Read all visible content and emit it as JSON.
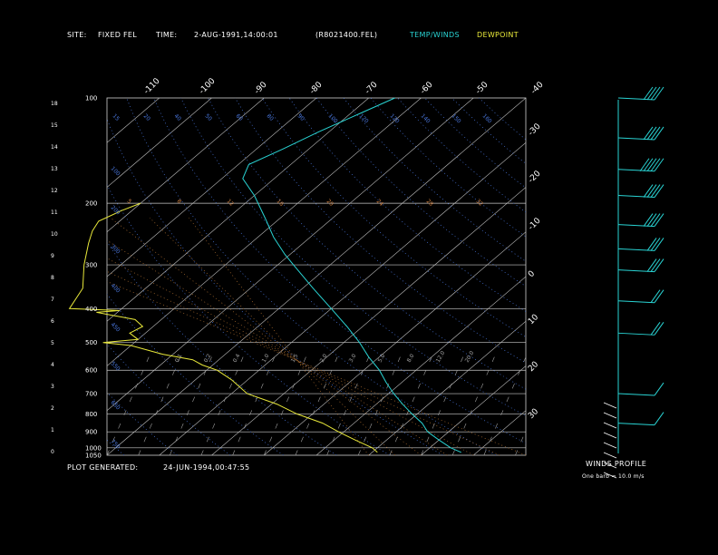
{
  "header": {
    "site_label": "SITE:",
    "site_value": "FIXED FEL",
    "time_label": "TIME:",
    "time_value": "2-AUG-1991,14:00:01",
    "file_name": "(R8021400.FEL)",
    "legend_temp": "TEMP/WINDS",
    "legend_dew": "DEWPOINT"
  },
  "footer": {
    "plot_generated_label": "PLOT GENERATED:",
    "plot_generated_value": "24-JUN-1994,00:47:55",
    "winds_profile_title": "WINDS PROFILE",
    "barb_note": "One barb = 10.0 m/s"
  },
  "colors": {
    "background": "#000000",
    "text": "#ffffff",
    "temp_line": "#29d3d3",
    "dewpoint_line": "#e8e83a",
    "isotherm": "#c0c0c0",
    "mixing_ratio": "#4a78e0",
    "dry_adiabat": "#b07030",
    "pressure_line": "#c8c8c8"
  },
  "chart_data": {
    "type": "line",
    "subtype": "skew-t sounding",
    "pressure_levels": [
      100,
      200,
      300,
      400,
      500,
      600,
      700,
      800,
      900,
      1000,
      1050
    ],
    "height_km_ticks": [
      18,
      15,
      14,
      13,
      12,
      11,
      10,
      9,
      8,
      7,
      6,
      5,
      4,
      3,
      2,
      1,
      0
    ],
    "top_temperature_ticks": [
      -110,
      -100,
      -90,
      -80,
      -70,
      -60,
      -50,
      -40
    ],
    "right_temperature_ticks": [
      -30,
      -20,
      -10,
      0,
      10,
      20,
      30
    ],
    "mixing_ratio_labels_top": [
      "15",
      "20",
      "40",
      "50",
      "60",
      "80",
      "90",
      "100",
      "120",
      "120",
      "140",
      "150",
      "160"
    ],
    "mixing_ratio_labels_left": [
      "100",
      "200",
      "300",
      "400",
      "450",
      "550",
      "650",
      "750"
    ],
    "adiabat_labels": [
      "5",
      "8",
      "12",
      "16",
      "20",
      "24",
      "28",
      "32"
    ],
    "mixing_ratio_labels_mid": [
      "0.1",
      "0.2",
      "0.4",
      "1.0",
      "1.5",
      "2.0",
      "3.0",
      "5.0",
      "8.0",
      "12.0",
      "20.0"
    ],
    "grid": true,
    "series": [
      {
        "name": "TEMP/WINDS",
        "points": [
          [
            100,
            -65
          ],
          [
            110,
            -68
          ],
          [
            125,
            -72
          ],
          [
            140,
            -75
          ],
          [
            155,
            -78
          ],
          [
            170,
            -76
          ],
          [
            190,
            -70
          ],
          [
            220,
            -63
          ],
          [
            250,
            -57
          ],
          [
            280,
            -51
          ],
          [
            300,
            -47
          ],
          [
            350,
            -38
          ],
          [
            400,
            -30
          ],
          [
            450,
            -23
          ],
          [
            500,
            -17
          ],
          [
            550,
            -12
          ],
          [
            600,
            -7
          ],
          [
            650,
            -3
          ],
          [
            700,
            1
          ],
          [
            750,
            5
          ],
          [
            800,
            9
          ],
          [
            850,
            13
          ],
          [
            900,
            16
          ],
          [
            950,
            20
          ],
          [
            1000,
            24
          ],
          [
            1030,
            27
          ]
        ]
      },
      {
        "name": "DEWPOINT",
        "points": [
          [
            200,
            -90
          ],
          [
            210,
            -92
          ],
          [
            225,
            -94
          ],
          [
            240,
            -93
          ],
          [
            260,
            -91
          ],
          [
            300,
            -87
          ],
          [
            350,
            -82
          ],
          [
            400,
            -80
          ],
          [
            405,
            -70
          ],
          [
            410,
            -74
          ],
          [
            430,
            -65
          ],
          [
            450,
            -62
          ],
          [
            470,
            -63
          ],
          [
            490,
            -60
          ],
          [
            500,
            -66
          ],
          [
            510,
            -60
          ],
          [
            540,
            -52
          ],
          [
            560,
            -45
          ],
          [
            580,
            -42
          ],
          [
            600,
            -38
          ],
          [
            640,
            -33
          ],
          [
            700,
            -27
          ],
          [
            750,
            -19
          ],
          [
            800,
            -13
          ],
          [
            850,
            -6
          ],
          [
            900,
            -1
          ],
          [
            950,
            4
          ],
          [
            1000,
            9
          ],
          [
            1030,
            11
          ]
        ]
      }
    ],
    "winds": [
      {
        "pressure": 100,
        "speed_ms": 35,
        "dir": 300
      },
      {
        "pressure": 130,
        "speed_ms": 40,
        "dir": 300
      },
      {
        "pressure": 160,
        "speed_ms": 45,
        "dir": 300
      },
      {
        "pressure": 190,
        "speed_ms": 40,
        "dir": 300
      },
      {
        "pressure": 230,
        "speed_ms": 35,
        "dir": 300
      },
      {
        "pressure": 270,
        "speed_ms": 30,
        "dir": 300
      },
      {
        "pressure": 310,
        "speed_ms": 25,
        "dir": 300
      },
      {
        "pressure": 380,
        "speed_ms": 20,
        "dir": 300
      },
      {
        "pressure": 470,
        "speed_ms": 15,
        "dir": 300
      },
      {
        "pressure": 700,
        "speed_ms": 5,
        "dir": 300
      },
      {
        "pressure": 850,
        "speed_ms": 5,
        "dir": 300
      }
    ]
  }
}
